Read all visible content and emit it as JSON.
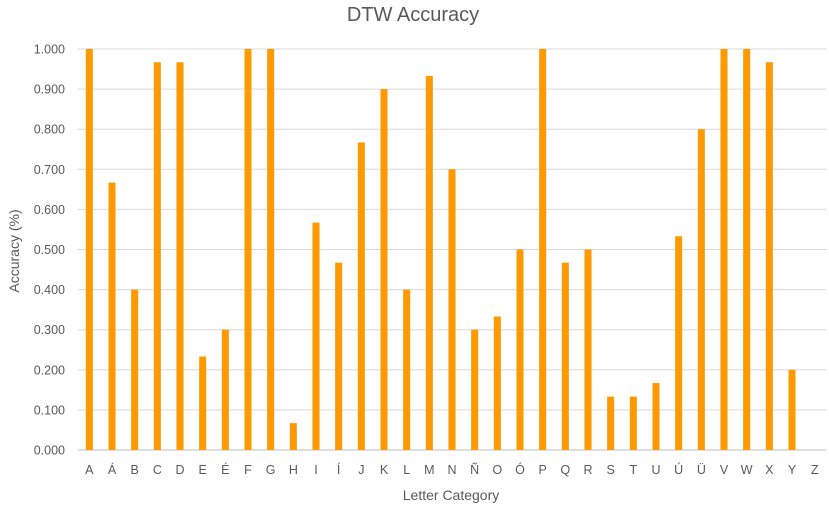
{
  "chart_data": {
    "type": "bar",
    "title": "DTW Accuracy",
    "xlabel": "Letter Category",
    "ylabel": "Accuracy (%)",
    "ylim": [
      0,
      1
    ],
    "ytick_labels": [
      "0.000",
      "0.100",
      "0.200",
      "0.300",
      "0.400",
      "0.500",
      "0.600",
      "0.700",
      "0.800",
      "0.900",
      "1.000"
    ],
    "grid": true,
    "bar_color": "#FF9900",
    "categories": [
      "A",
      "Á",
      "B",
      "C",
      "D",
      "E",
      "É",
      "F",
      "G",
      "H",
      "I",
      "Í",
      "J",
      "K",
      "L",
      "M",
      "N",
      "Ñ",
      "O",
      "Ó",
      "P",
      "Q",
      "R",
      "S",
      "T",
      "U",
      "Ú",
      "Ü",
      "V",
      "W",
      "X",
      "Y",
      "Z"
    ],
    "values": [
      1.0,
      0.667,
      0.4,
      0.967,
      0.967,
      0.233,
      0.3,
      1.0,
      1.0,
      0.067,
      0.567,
      0.467,
      0.767,
      0.9,
      0.4,
      0.933,
      0.7,
      0.3,
      0.333,
      0.5,
      1.0,
      0.467,
      0.5,
      0.133,
      0.133,
      0.167,
      0.533,
      0.8,
      1.0,
      1.0,
      0.967,
      0.2,
      0.0
    ]
  }
}
